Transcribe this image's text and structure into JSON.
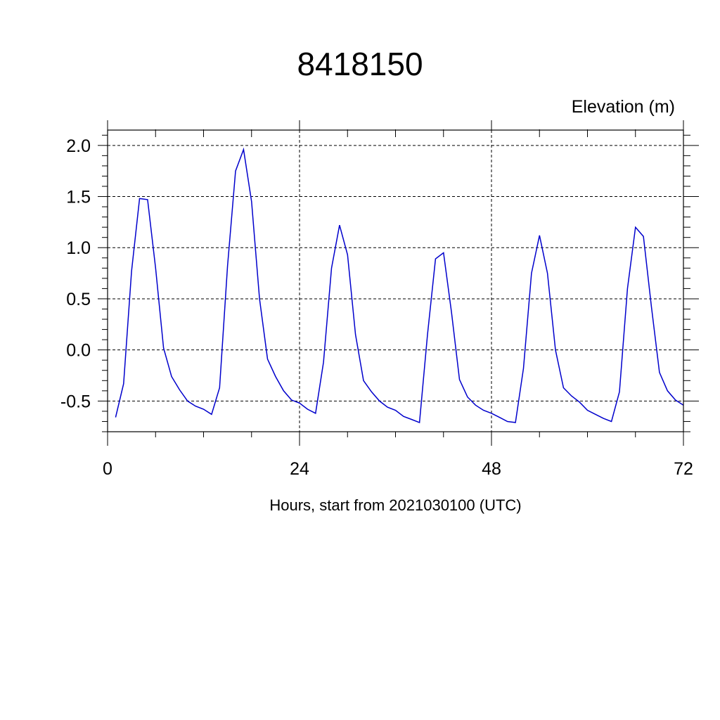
{
  "chart_data": {
    "type": "line",
    "title": "8418150",
    "ylabel": "Elevation (m)",
    "xlabel": "Hours, start from 2021030100 (UTC)",
    "xlim": [
      0,
      72
    ],
    "ylim": [
      -0.8,
      2.15
    ],
    "xticks": [
      0,
      24,
      48,
      72
    ],
    "xtick_labels": [
      "0",
      "24",
      "48",
      "72"
    ],
    "yticks": [
      -0.5,
      0.0,
      0.5,
      1.0,
      1.5,
      2.0
    ],
    "ytick_labels": [
      "-0.5",
      "0.0",
      "0.5",
      "1.0",
      "1.5",
      "2.0"
    ],
    "grid": true,
    "line_color": "#0000cc",
    "series": [
      {
        "x": [
          1,
          2,
          3,
          4,
          5,
          6,
          7,
          8,
          9,
          10,
          11,
          12,
          13,
          14,
          15,
          16,
          17,
          18,
          19,
          20,
          21,
          22,
          23,
          24,
          25,
          26,
          27,
          28,
          29,
          30,
          31,
          32,
          33,
          34,
          35,
          36,
          37,
          38,
          39,
          40,
          41,
          42,
          43,
          44,
          45,
          46,
          47,
          48,
          49,
          50,
          51,
          52,
          53,
          54,
          55,
          56,
          57,
          58,
          59,
          60,
          61,
          62,
          63,
          64,
          65,
          66,
          67,
          68,
          69,
          70,
          71,
          72
        ],
        "values": [
          -0.66,
          -0.33,
          0.77,
          1.48,
          1.47,
          0.8,
          0.02,
          -0.26,
          -0.39,
          -0.5,
          -0.55,
          -0.58,
          -0.63,
          -0.37,
          0.82,
          1.75,
          1.96,
          1.45,
          0.5,
          -0.09,
          -0.26,
          -0.4,
          -0.49,
          -0.52,
          -0.58,
          -0.62,
          -0.12,
          0.8,
          1.22,
          0.93,
          0.15,
          -0.3,
          -0.41,
          -0.5,
          -0.56,
          -0.59,
          -0.65,
          -0.68,
          -0.71,
          0.15,
          0.89,
          0.95,
          0.37,
          -0.29,
          -0.46,
          -0.54,
          -0.59,
          -0.62,
          -0.66,
          -0.7,
          -0.71,
          -0.18,
          0.75,
          1.12,
          0.75,
          0.0,
          -0.37,
          -0.45,
          -0.51,
          -0.59,
          -0.63,
          -0.67,
          -0.7,
          -0.41,
          0.6,
          1.2,
          1.11,
          0.42,
          -0.22,
          -0.4,
          -0.49,
          -0.54
        ]
      }
    ]
  }
}
